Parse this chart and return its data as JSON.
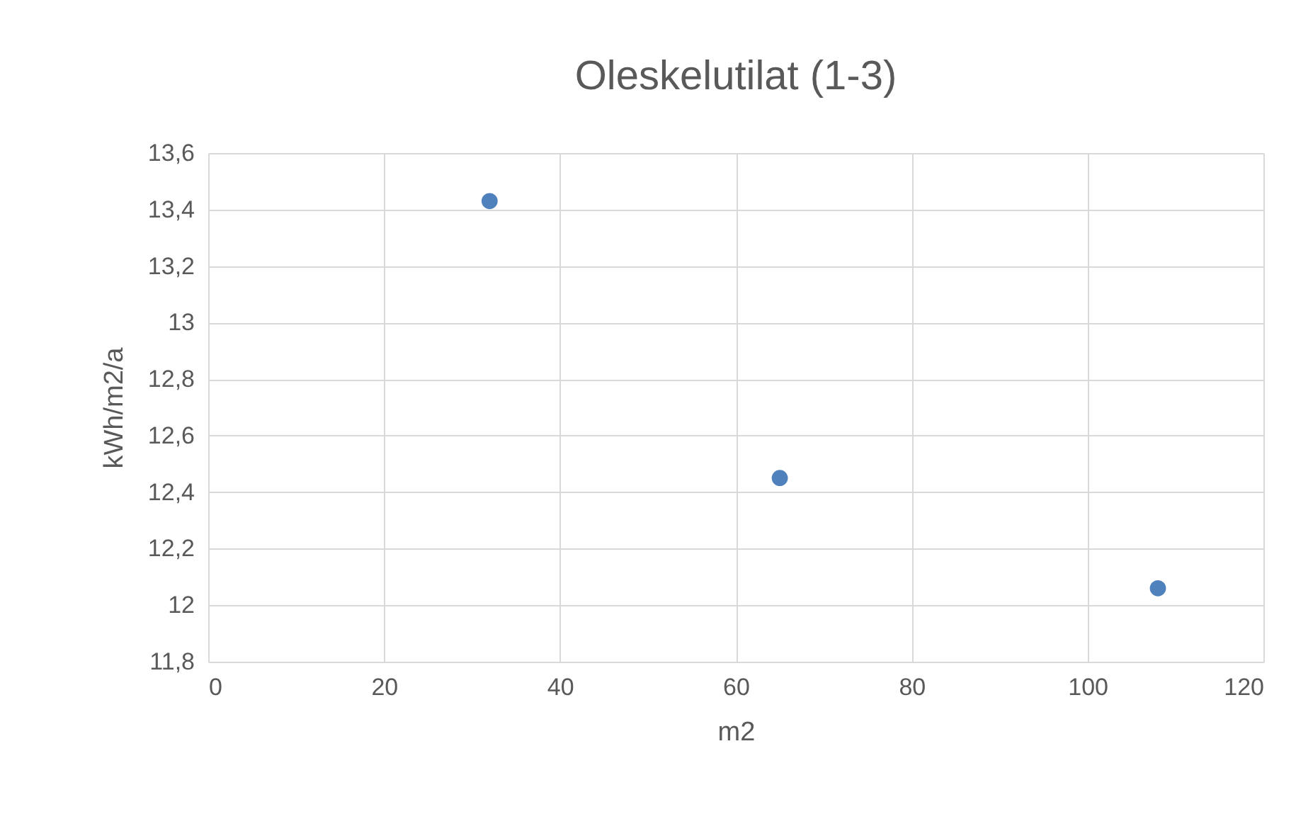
{
  "chart_data": {
    "type": "scatter",
    "title": "Oleskelutilat (1-3)",
    "xlabel": "m2",
    "ylabel": "kWh/m2/a",
    "x": [
      32,
      65,
      108
    ],
    "series": [
      {
        "color": "#4f81bd",
        "values": [
          13.43,
          12.45,
          12.06
        ]
      }
    ],
    "xlim": [
      0,
      120
    ],
    "xticks": [
      0,
      20,
      40,
      60,
      80,
      100,
      120
    ],
    "ylim": [
      11.8,
      13.6
    ],
    "yticks": [
      {
        "value": 11.8,
        "label": "11,8"
      },
      {
        "value": 12,
        "label": "12"
      },
      {
        "value": 12.2,
        "label": "12,2"
      },
      {
        "value": 12.4,
        "label": "12,4"
      },
      {
        "value": 12.6,
        "label": "12,6"
      },
      {
        "value": 12.8,
        "label": "12,8"
      },
      {
        "value": 13,
        "label": "13"
      },
      {
        "value": 13.2,
        "label": "13,2"
      },
      {
        "value": 13.4,
        "label": "13,4"
      },
      {
        "value": 13.6,
        "label": "13,6"
      }
    ],
    "grid": true,
    "marker": "circle"
  }
}
